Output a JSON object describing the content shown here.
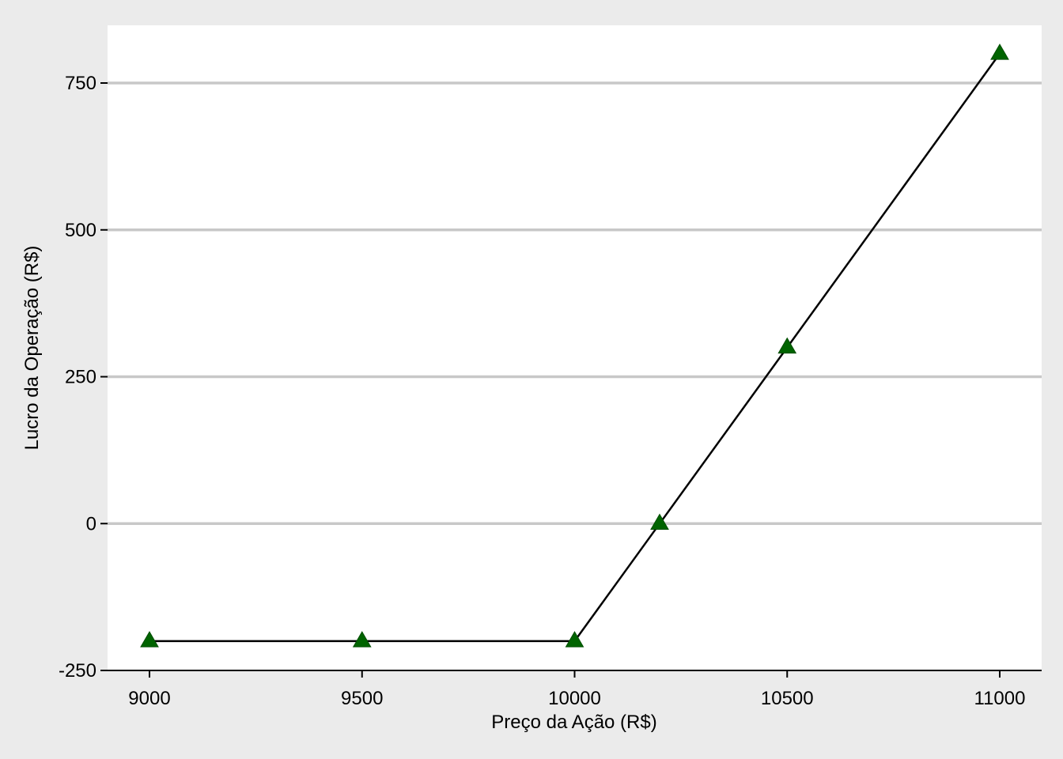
{
  "chart_data": {
    "type": "line",
    "xlabel": "Preço da Ação (R$)",
    "ylabel": "Lucro da Operação (R$)",
    "x": [
      9000,
      9500,
      10000,
      10200,
      10500,
      11000
    ],
    "series": [
      {
        "values": [
          -200,
          -200,
          -200,
          0,
          300,
          800
        ]
      }
    ],
    "xlim": [
      8900,
      11100
    ],
    "ylim": [
      -250,
      850
    ],
    "xticks": [
      9000,
      9500,
      10000,
      10500,
      11000
    ],
    "yticks": [
      -250,
      0,
      250,
      500,
      750
    ],
    "grid": "horizontal",
    "marker": "triangle",
    "colors": {
      "line": "#000000",
      "marker": "#006400",
      "grid": "#c8c8c8",
      "panel": "#ffffff",
      "background": "#ebebeb"
    }
  }
}
